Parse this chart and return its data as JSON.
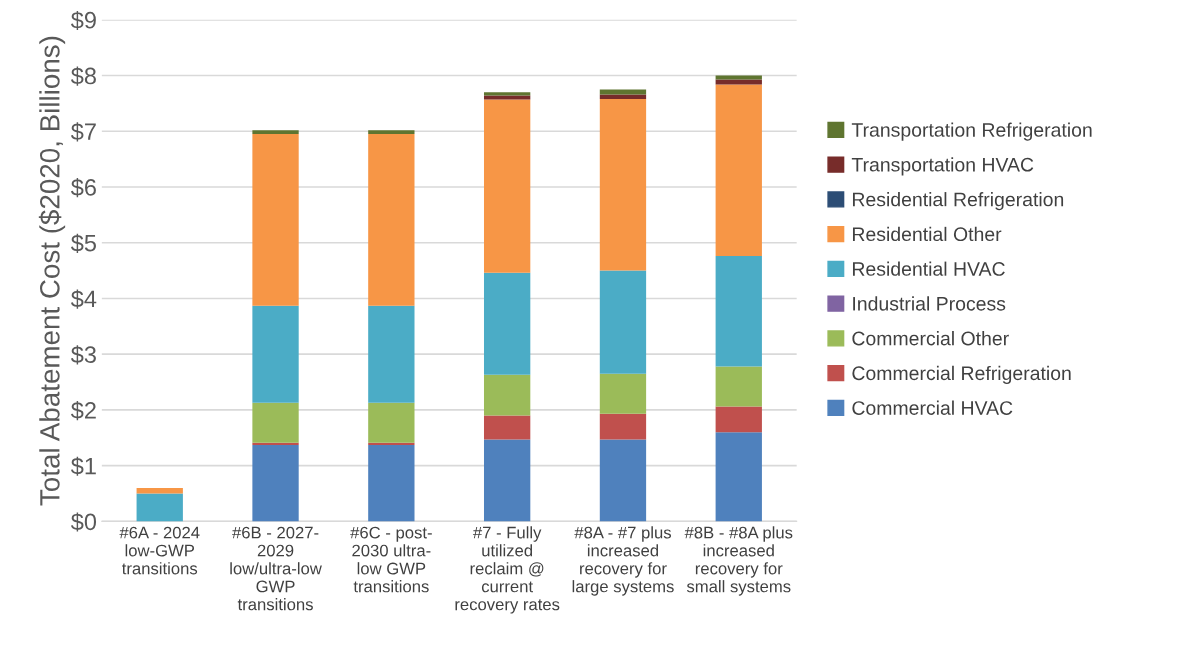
{
  "chart_data": {
    "type": "bar",
    "stacked": true,
    "ylabel": "Total Abatement Cost ($2020, Billions)",
    "categories": [
      "#6A - 2024\nlow-GWP\ntransitions",
      "#6B - 2027-\n2029\nlow/ultra-low\nGWP\ntransitions",
      "#6C - post-\n2030 ultra-\nlow GWP\ntransitions",
      "#7 - Fully\nutilized\nreclaim @\ncurrent\nrecovery rates",
      "#8A - #7 plus\nincreased\nrecovery for\nlarge systems",
      "#8B - #8A plus\nincreased\nrecovery for\nsmall systems"
    ],
    "series": [
      {
        "name": "Commercial HVAC",
        "color": "#4f81bd",
        "values": [
          0,
          1.37,
          1.37,
          1.47,
          1.47,
          1.6
        ]
      },
      {
        "name": "Commercial Refrigeration",
        "color": "#c0504d",
        "values": [
          0,
          0.04,
          0.04,
          0.43,
          0.46,
          0.46
        ]
      },
      {
        "name": "Commercial Other",
        "color": "#9bbb59",
        "values": [
          0,
          0.72,
          0.72,
          0.73,
          0.72,
          0.72
        ]
      },
      {
        "name": "Industrial Process",
        "color": "#8064a2",
        "values": [
          0,
          0,
          0,
          0,
          0,
          0
        ]
      },
      {
        "name": "Residential HVAC",
        "color": "#4bacc6",
        "values": [
          0.5,
          1.74,
          1.74,
          1.83,
          1.85,
          1.98
        ]
      },
      {
        "name": "Residential Other",
        "color": "#f79646",
        "values": [
          0.1,
          3.08,
          3.08,
          3.11,
          3.08,
          3.08
        ]
      },
      {
        "name": "Residential Refrigeration",
        "color": "#2c4d75",
        "values": [
          0,
          0,
          0,
          0,
          0,
          0
        ]
      },
      {
        "name": "Transportation HVAC",
        "color": "#772c2a",
        "values": [
          0,
          0,
          0,
          0.07,
          0.08,
          0.09
        ]
      },
      {
        "name": "Transportation Refrigeration",
        "color": "#5f7530",
        "values": [
          0,
          0.07,
          0.07,
          0.06,
          0.09,
          0.07
        ]
      }
    ],
    "ylim": [
      0,
      9
    ],
    "yticks": [
      {
        "value": 0,
        "label": "$0"
      },
      {
        "value": 1,
        "label": "$1"
      },
      {
        "value": 2,
        "label": "$2"
      },
      {
        "value": 3,
        "label": "$3"
      },
      {
        "value": 4,
        "label": "$4"
      },
      {
        "value": 5,
        "label": "$5"
      },
      {
        "value": 6,
        "label": "$6"
      },
      {
        "value": 7,
        "label": "$7"
      },
      {
        "value": 8,
        "label": "$8"
      },
      {
        "value": 9,
        "label": "$9"
      }
    ],
    "grid": "y",
    "legend": "right"
  }
}
